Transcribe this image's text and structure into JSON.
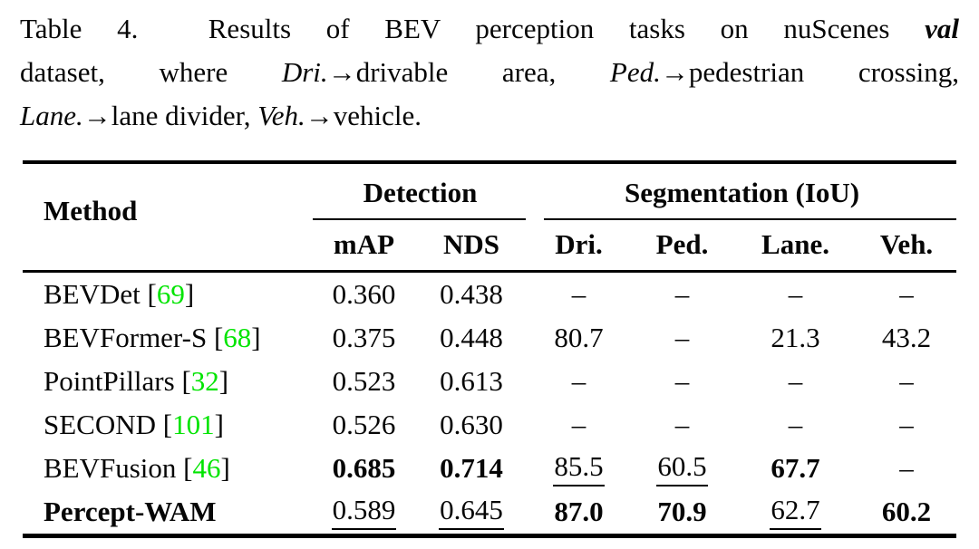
{
  "caption": {
    "lines": [
      [
        {
          "t": "Table 4.  Results of BEV perception tasks on nuScenes ",
          "style": "plain"
        },
        {
          "t": "val",
          "style": "bolditalic"
        }
      ],
      [
        {
          "t": "dataset, where ",
          "style": "plain"
        },
        {
          "t": "Dri.",
          "style": "italic"
        },
        {
          "t": "→drivable area, ",
          "style": "plain"
        },
        {
          "t": "Ped.",
          "style": "italic"
        },
        {
          "t": "→pedestrian crossing,",
          "style": "plain"
        }
      ],
      [
        {
          "t": "Lane.",
          "style": "italic"
        },
        {
          "t": "→lane divider, ",
          "style": "plain"
        },
        {
          "t": "Veh.",
          "style": "italic"
        },
        {
          "t": "→vehicle.",
          "style": "plain"
        }
      ]
    ]
  },
  "table": {
    "method_header": "Method",
    "groups": [
      {
        "label": "Detection",
        "span": 2
      },
      {
        "label": "Segmentation (IoU)",
        "span": 4
      }
    ],
    "columns": [
      "mAP",
      "NDS",
      "Dri.",
      "Ped.",
      "Lane.",
      "Veh."
    ],
    "rows": [
      {
        "method": "BEVDet",
        "cite": "69",
        "method_bold": false,
        "cells": [
          {
            "t": "0.360"
          },
          {
            "t": "0.438"
          },
          {
            "t": "–"
          },
          {
            "t": "–"
          },
          {
            "t": "–"
          },
          {
            "t": "–"
          }
        ]
      },
      {
        "method": "BEVFormer-S",
        "cite": "68",
        "method_bold": false,
        "cells": [
          {
            "t": "0.375"
          },
          {
            "t": "0.448"
          },
          {
            "t": "80.7"
          },
          {
            "t": "–"
          },
          {
            "t": "21.3"
          },
          {
            "t": "43.2"
          }
        ]
      },
      {
        "method": "PointPillars",
        "cite": "32",
        "method_bold": false,
        "cells": [
          {
            "t": "0.523"
          },
          {
            "t": "0.613"
          },
          {
            "t": "–"
          },
          {
            "t": "–"
          },
          {
            "t": "–"
          },
          {
            "t": "–"
          }
        ]
      },
      {
        "method": "SECOND",
        "cite": "101",
        "method_bold": false,
        "cells": [
          {
            "t": "0.526"
          },
          {
            "t": "0.630"
          },
          {
            "t": "–"
          },
          {
            "t": "–"
          },
          {
            "t": "–"
          },
          {
            "t": "–"
          }
        ]
      },
      {
        "method": "BEVFusion",
        "cite": "46",
        "method_bold": false,
        "cells": [
          {
            "t": "0.685",
            "bold": true
          },
          {
            "t": "0.714",
            "bold": true
          },
          {
            "t": "85.5",
            "underline": true
          },
          {
            "t": "60.5",
            "underline": true
          },
          {
            "t": "67.7",
            "bold": true
          },
          {
            "t": "–"
          }
        ]
      },
      {
        "method": "Percept-WAM",
        "cite": null,
        "method_bold": true,
        "cells": [
          {
            "t": "0.589",
            "underline": true
          },
          {
            "t": "0.645",
            "underline": true
          },
          {
            "t": "87.0",
            "bold": true
          },
          {
            "t": "70.9",
            "bold": true
          },
          {
            "t": "62.7",
            "underline": true
          },
          {
            "t": "60.2",
            "bold": true
          }
        ]
      }
    ]
  },
  "colors": {
    "citation_green": "#00e400",
    "text": "#060606",
    "rule": "#000000"
  }
}
